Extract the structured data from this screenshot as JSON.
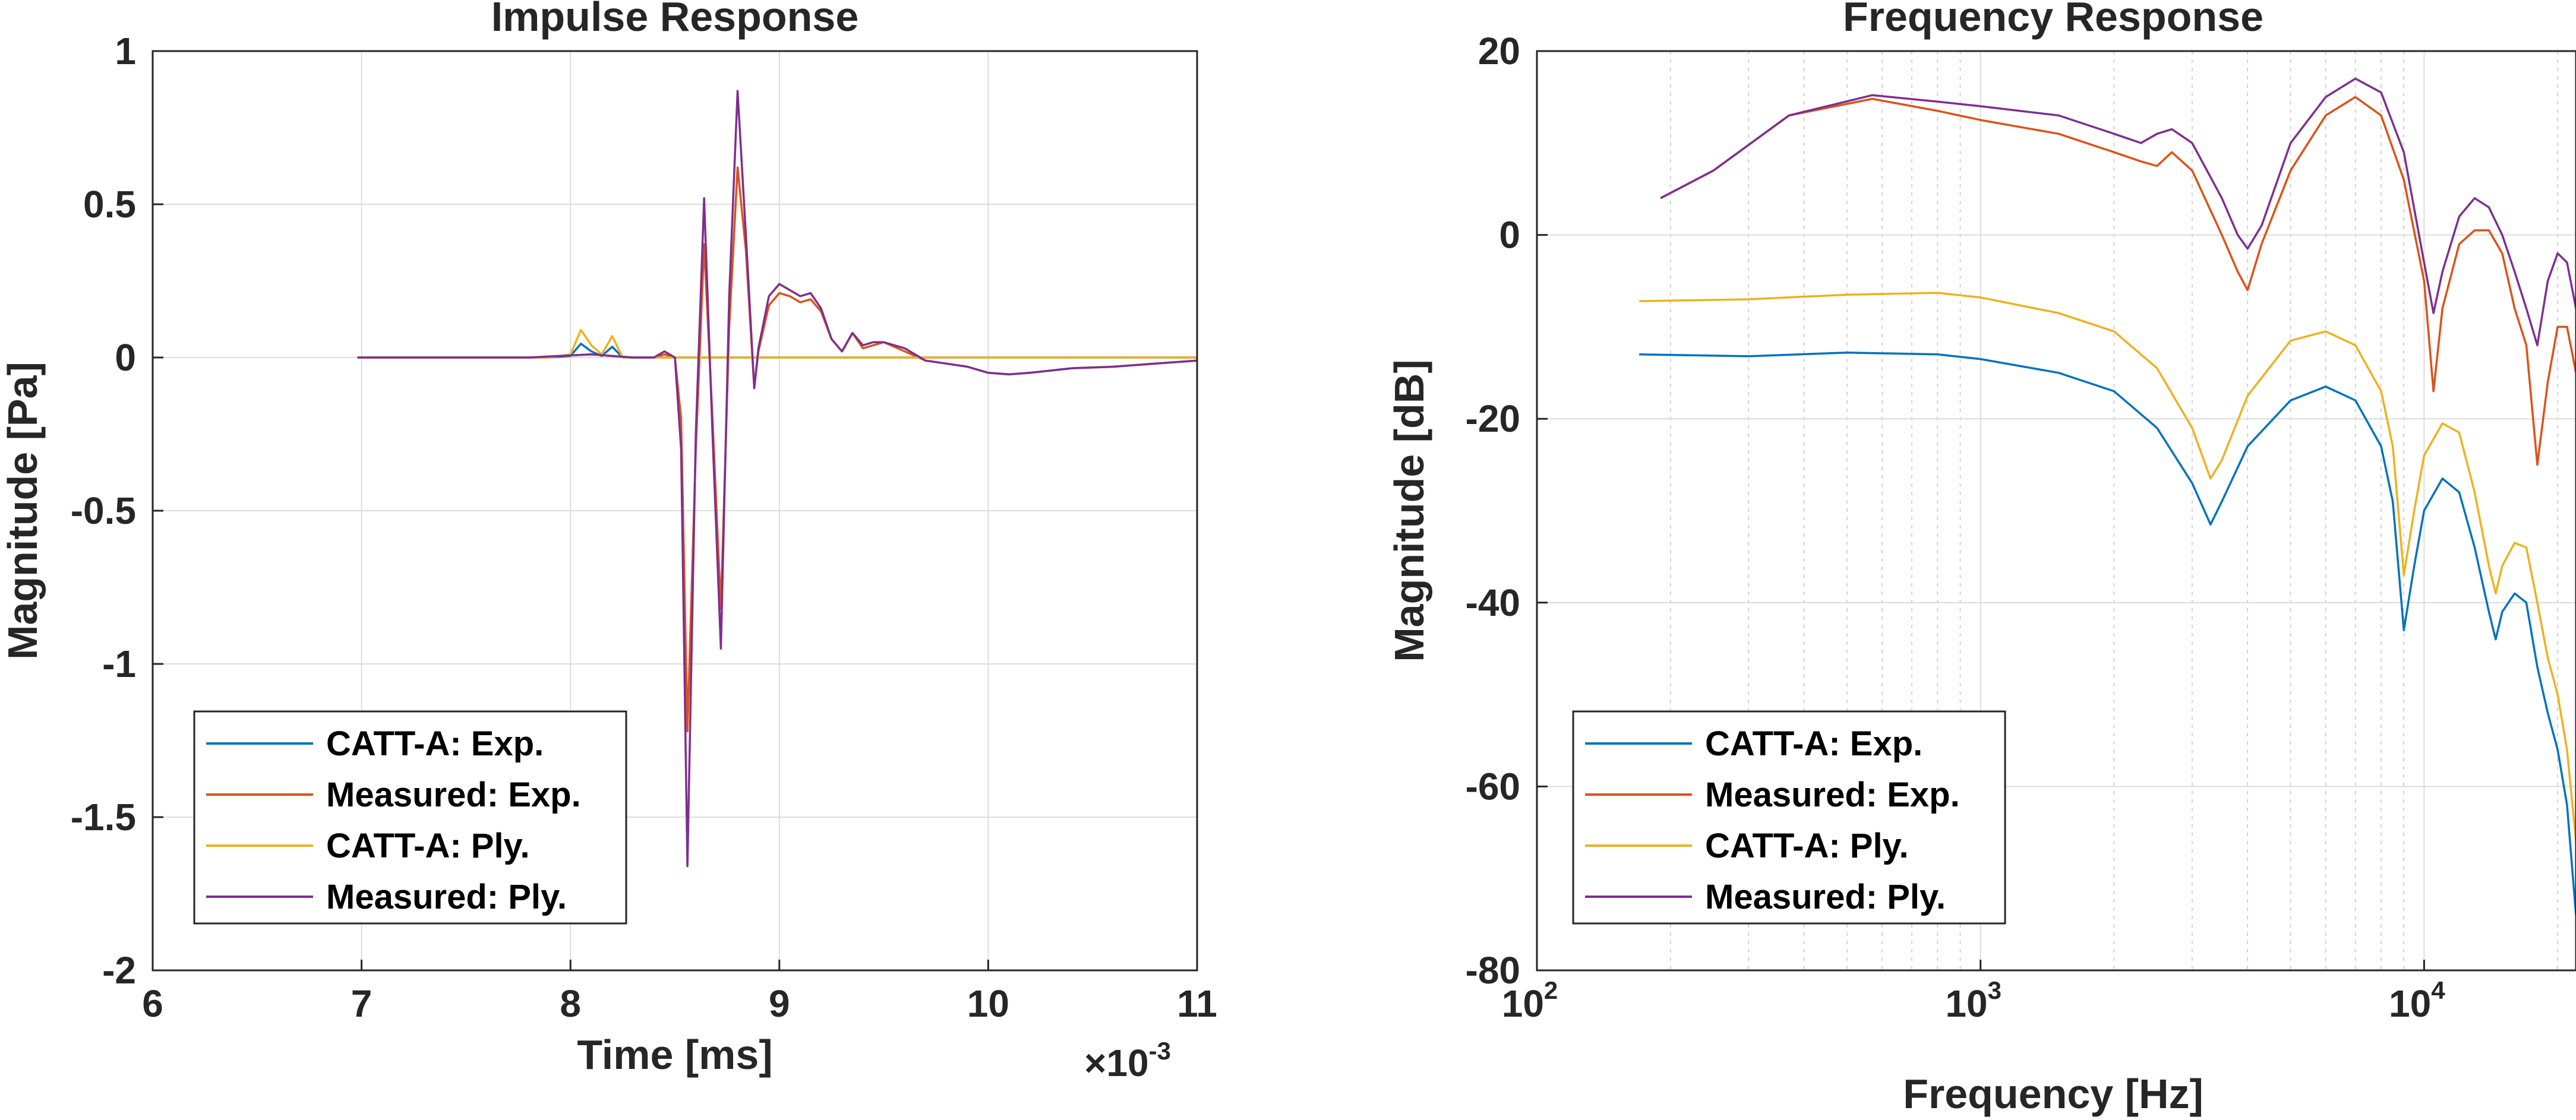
{
  "chart_data": [
    {
      "type": "line",
      "title": "Impulse Response",
      "xlabel": "Time [ms]",
      "ylabel": "Magnitude [Pa]",
      "x_exponent_label": "×10",
      "x_exponent_power": "-3",
      "xlim": [
        6,
        11
      ],
      "ylim": [
        -2,
        1
      ],
      "x_scale": "linear",
      "grid": true,
      "legend_position": "bottom-left",
      "x_ticks": [
        6,
        7,
        8,
        9,
        10,
        11
      ],
      "x_tick_labels": [
        "6",
        "7",
        "8",
        "9",
        "10",
        "11"
      ],
      "y_ticks": [
        1,
        0.5,
        0,
        -0.5,
        -1,
        -1.5,
        -2
      ],
      "y_tick_labels": [
        "1",
        "0.5",
        "0",
        "-0.5",
        "-1",
        "-1.5",
        "-2"
      ],
      "series": [
        {
          "name": "CATT-A: Exp.",
          "color": "#0072BD",
          "x": [
            6.98,
            7.5,
            7.9,
            8.0,
            8.05,
            8.1,
            8.15,
            8.2,
            8.25,
            8.3,
            8.4,
            8.5,
            9.0,
            10.0,
            11.0
          ],
          "y": [
            0,
            0,
            0,
            0.005,
            0.045,
            0.02,
            0.005,
            0.035,
            0.0,
            0.0,
            0.0,
            0.0,
            0.0,
            0.0,
            0.0
          ]
        },
        {
          "name": "Measured: Exp.",
          "color": "#D95319",
          "x": [
            6.98,
            7.8,
            8.1,
            8.3,
            8.4,
            8.45,
            8.5,
            8.53,
            8.56,
            8.6,
            8.64,
            8.68,
            8.72,
            8.76,
            8.8,
            8.84,
            8.88,
            8.9,
            8.95,
            9.0,
            9.05,
            9.1,
            9.15,
            9.2,
            9.25,
            9.3,
            9.35,
            9.4,
            9.45,
            9.5,
            9.6,
            9.7,
            9.8,
            9.9,
            10.0,
            10.1,
            10.2,
            10.4,
            10.6,
            10.8,
            11.0
          ],
          "y": [
            0,
            0,
            0.01,
            0.0,
            0.0,
            0.01,
            0.0,
            -0.2,
            -1.22,
            -0.3,
            0.37,
            -0.2,
            -0.82,
            0.1,
            0.62,
            0.35,
            -0.1,
            0.02,
            0.17,
            0.21,
            0.2,
            0.18,
            0.19,
            0.15,
            0.06,
            0.02,
            0.08,
            0.03,
            0.04,
            0.05,
            0.02,
            -0.01,
            -0.02,
            -0.03,
            -0.05,
            -0.055,
            -0.05,
            -0.035,
            -0.03,
            -0.02,
            -0.01
          ]
        },
        {
          "name": "CATT-A: Ply.",
          "color": "#EDB120",
          "x": [
            6.98,
            7.5,
            7.9,
            8.0,
            8.05,
            8.1,
            8.15,
            8.2,
            8.25,
            8.3,
            8.4,
            9.0,
            10.0,
            11.0
          ],
          "y": [
            0,
            0,
            0,
            0.01,
            0.09,
            0.04,
            0.01,
            0.07,
            0.0,
            0.0,
            0.0,
            0.0,
            0.0,
            0.0
          ]
        },
        {
          "name": "Measured: Ply.",
          "color": "#7E2F8E",
          "x": [
            6.98,
            7.8,
            8.1,
            8.3,
            8.4,
            8.45,
            8.5,
            8.53,
            8.56,
            8.6,
            8.64,
            8.68,
            8.72,
            8.76,
            8.8,
            8.84,
            8.88,
            8.9,
            8.95,
            9.0,
            9.05,
            9.1,
            9.15,
            9.2,
            9.25,
            9.3,
            9.35,
            9.4,
            9.45,
            9.5,
            9.6,
            9.7,
            9.8,
            9.9,
            10.0,
            10.1,
            10.2,
            10.4,
            10.6,
            10.8,
            11.0
          ],
          "y": [
            0,
            0,
            0.01,
            0.0,
            0.0,
            0.02,
            0.0,
            -0.3,
            -1.66,
            -0.25,
            0.52,
            -0.25,
            -0.95,
            0.2,
            0.87,
            0.4,
            -0.1,
            0.03,
            0.2,
            0.24,
            0.22,
            0.2,
            0.21,
            0.16,
            0.06,
            0.02,
            0.08,
            0.04,
            0.05,
            0.05,
            0.03,
            -0.01,
            -0.02,
            -0.03,
            -0.05,
            -0.055,
            -0.05,
            -0.035,
            -0.03,
            -0.02,
            -0.01
          ]
        }
      ]
    },
    {
      "type": "line",
      "title": "Frequency Response",
      "xlabel": "Frequency [Hz]",
      "ylabel": "Magnitude [dB]",
      "xlim": [
        100,
        22000
      ],
      "ylim": [
        -80,
        20
      ],
      "x_scale": "log",
      "grid": true,
      "legend_position": "bottom-left",
      "x_ticks": [
        100,
        1000,
        10000
      ],
      "x_tick_labels": [
        "10",
        "10",
        "10"
      ],
      "x_tick_powers": [
        "2",
        "3",
        "4"
      ],
      "y_ticks": [
        20,
        0,
        -20,
        -40,
        -60,
        -80
      ],
      "y_tick_labels": [
        "20",
        "0",
        "-20",
        "-40",
        "-60",
        "-80"
      ],
      "series": [
        {
          "name": "CATT-A: Exp.",
          "color": "#0072BD",
          "x": [
            170,
            300,
            500,
            800,
            1000,
            1500,
            2000,
            2500,
            3000,
            3300,
            3500,
            4000,
            5000,
            6000,
            7000,
            8000,
            8500,
            9000,
            9500,
            10000,
            11000,
            12000,
            13000,
            14000,
            14500,
            15000,
            16000,
            17000,
            18000,
            19000,
            20000,
            21000,
            22000
          ],
          "y": [
            -13,
            -13.2,
            -12.8,
            -13,
            -13.5,
            -15,
            -17,
            -21,
            -27,
            -31.5,
            -29,
            -23,
            -18,
            -16.5,
            -18,
            -23,
            -29,
            -43,
            -36,
            -30,
            -26.5,
            -28,
            -34,
            -41,
            -44,
            -41,
            -39,
            -40,
            -47,
            -52,
            -56,
            -62,
            -74
          ]
        },
        {
          "name": "Measured: Exp.",
          "color": "#D95319",
          "x": [
            190,
            250,
            370,
            570,
            800,
            1000,
            1500,
            2000,
            2300,
            2500,
            2700,
            3000,
            3500,
            3800,
            4000,
            4300,
            5000,
            6000,
            7000,
            8000,
            9000,
            10000,
            10500,
            11000,
            12000,
            13000,
            14000,
            15000,
            16000,
            17000,
            18000,
            19000,
            20000,
            21000,
            22000
          ],
          "y": [
            4,
            7,
            13,
            14.8,
            13.5,
            12.5,
            11,
            9,
            8,
            7.5,
            9,
            7,
            0,
            -4,
            -6,
            -1,
            7,
            13,
            15,
            13,
            6,
            -5,
            -17,
            -8,
            -1,
            0.5,
            0.5,
            -2,
            -8,
            -12,
            -25,
            -16,
            -10,
            -10,
            -15
          ]
        },
        {
          "name": "CATT-A: Ply.",
          "color": "#EDB120",
          "x": [
            170,
            300,
            500,
            800,
            1000,
            1500,
            2000,
            2500,
            3000,
            3300,
            3500,
            4000,
            5000,
            6000,
            7000,
            8000,
            8500,
            9000,
            9500,
            10000,
            11000,
            12000,
            13000,
            14000,
            14500,
            15000,
            16000,
            17000,
            18000,
            19000,
            20000,
            21000,
            22000
          ],
          "y": [
            -7.2,
            -7,
            -6.5,
            -6.3,
            -6.8,
            -8.5,
            -10.5,
            -14.5,
            -21,
            -26.5,
            -24.5,
            -17.5,
            -11.5,
            -10.5,
            -12,
            -17,
            -23,
            -37,
            -30,
            -24,
            -20.5,
            -21.5,
            -28,
            -36,
            -39,
            -36,
            -33.5,
            -34,
            -40,
            -46,
            -50,
            -56,
            -66
          ]
        },
        {
          "name": "Measured: Ply.",
          "color": "#7E2F8E",
          "x": [
            190,
            250,
            370,
            570,
            800,
            1000,
            1500,
            2000,
            2300,
            2500,
            2700,
            3000,
            3500,
            3800,
            4000,
            4300,
            5000,
            6000,
            7000,
            8000,
            9000,
            10000,
            10500,
            11000,
            12000,
            13000,
            14000,
            15000,
            16000,
            17000,
            18000,
            19000,
            20000,
            21000,
            22000
          ],
          "y": [
            4,
            7,
            13,
            15.2,
            14.5,
            14,
            13,
            11,
            10,
            11,
            11.5,
            10,
            4,
            0,
            -1.5,
            1,
            10,
            15,
            17,
            15.5,
            9,
            -3,
            -8.5,
            -4,
            2,
            4,
            3,
            0,
            -4,
            -8,
            -12,
            -5,
            -2,
            -3,
            -8
          ]
        }
      ]
    }
  ]
}
